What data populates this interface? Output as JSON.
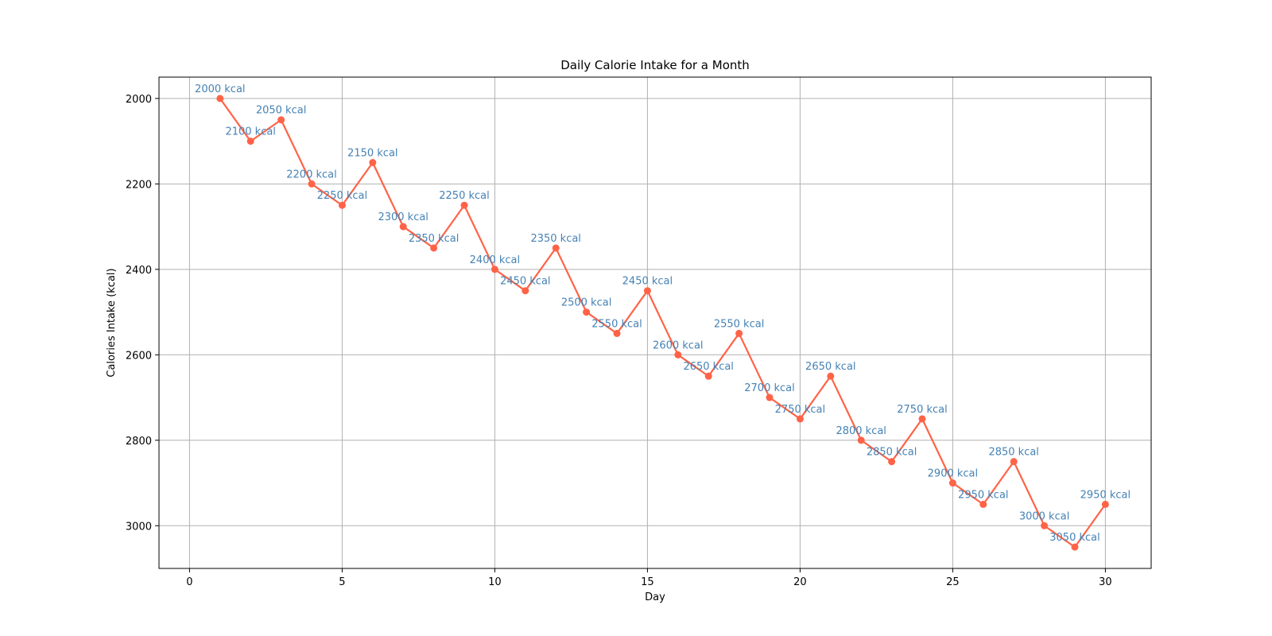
{
  "chart_data": {
    "type": "line",
    "title": "Daily Calorie Intake for a Month",
    "xlabel": "Day",
    "ylabel": "Calories Intake (kcal)",
    "xlim": [
      -1,
      31.5
    ],
    "ylim": [
      1950,
      3100
    ],
    "y_inverted": true,
    "x_ticks": [
      0,
      5,
      10,
      15,
      20,
      25,
      30
    ],
    "y_ticks": [
      2000,
      2200,
      2400,
      2600,
      2800,
      3000
    ],
    "grid": true,
    "line_color": "#ff6347",
    "label_color": "#4682b4",
    "series": [
      {
        "x": [
          1,
          2,
          3,
          4,
          5,
          6,
          7,
          8,
          9,
          10,
          11,
          12,
          13,
          14,
          15,
          16,
          17,
          18,
          19,
          20,
          21,
          22,
          23,
          24,
          25,
          26,
          27,
          28,
          29,
          30
        ],
        "values": [
          2000,
          2100,
          2050,
          2200,
          2250,
          2150,
          2300,
          2350,
          2250,
          2400,
          2450,
          2350,
          2500,
          2550,
          2450,
          2600,
          2650,
          2550,
          2700,
          2750,
          2650,
          2800,
          2850,
          2750,
          2900,
          2950,
          2850,
          3000,
          3050,
          2950
        ]
      }
    ],
    "data_labels": [
      "2000 kcal",
      "2100 kcal",
      "2050 kcal",
      "2200 kcal",
      "2250 kcal",
      "2150 kcal",
      "2300 kcal",
      "2350 kcal",
      "2250 kcal",
      "2400 kcal",
      "2450 kcal",
      "2350 kcal",
      "2500 kcal",
      "2550 kcal",
      "2450 kcal",
      "2600 kcal",
      "2650 kcal",
      "2550 kcal",
      "2700 kcal",
      "2750 kcal",
      "2650 kcal",
      "2800 kcal",
      "2850 kcal",
      "2750 kcal",
      "2900 kcal",
      "2950 kcal",
      "2850 kcal",
      "3000 kcal",
      "3050 kcal",
      "2950 kcal"
    ]
  }
}
